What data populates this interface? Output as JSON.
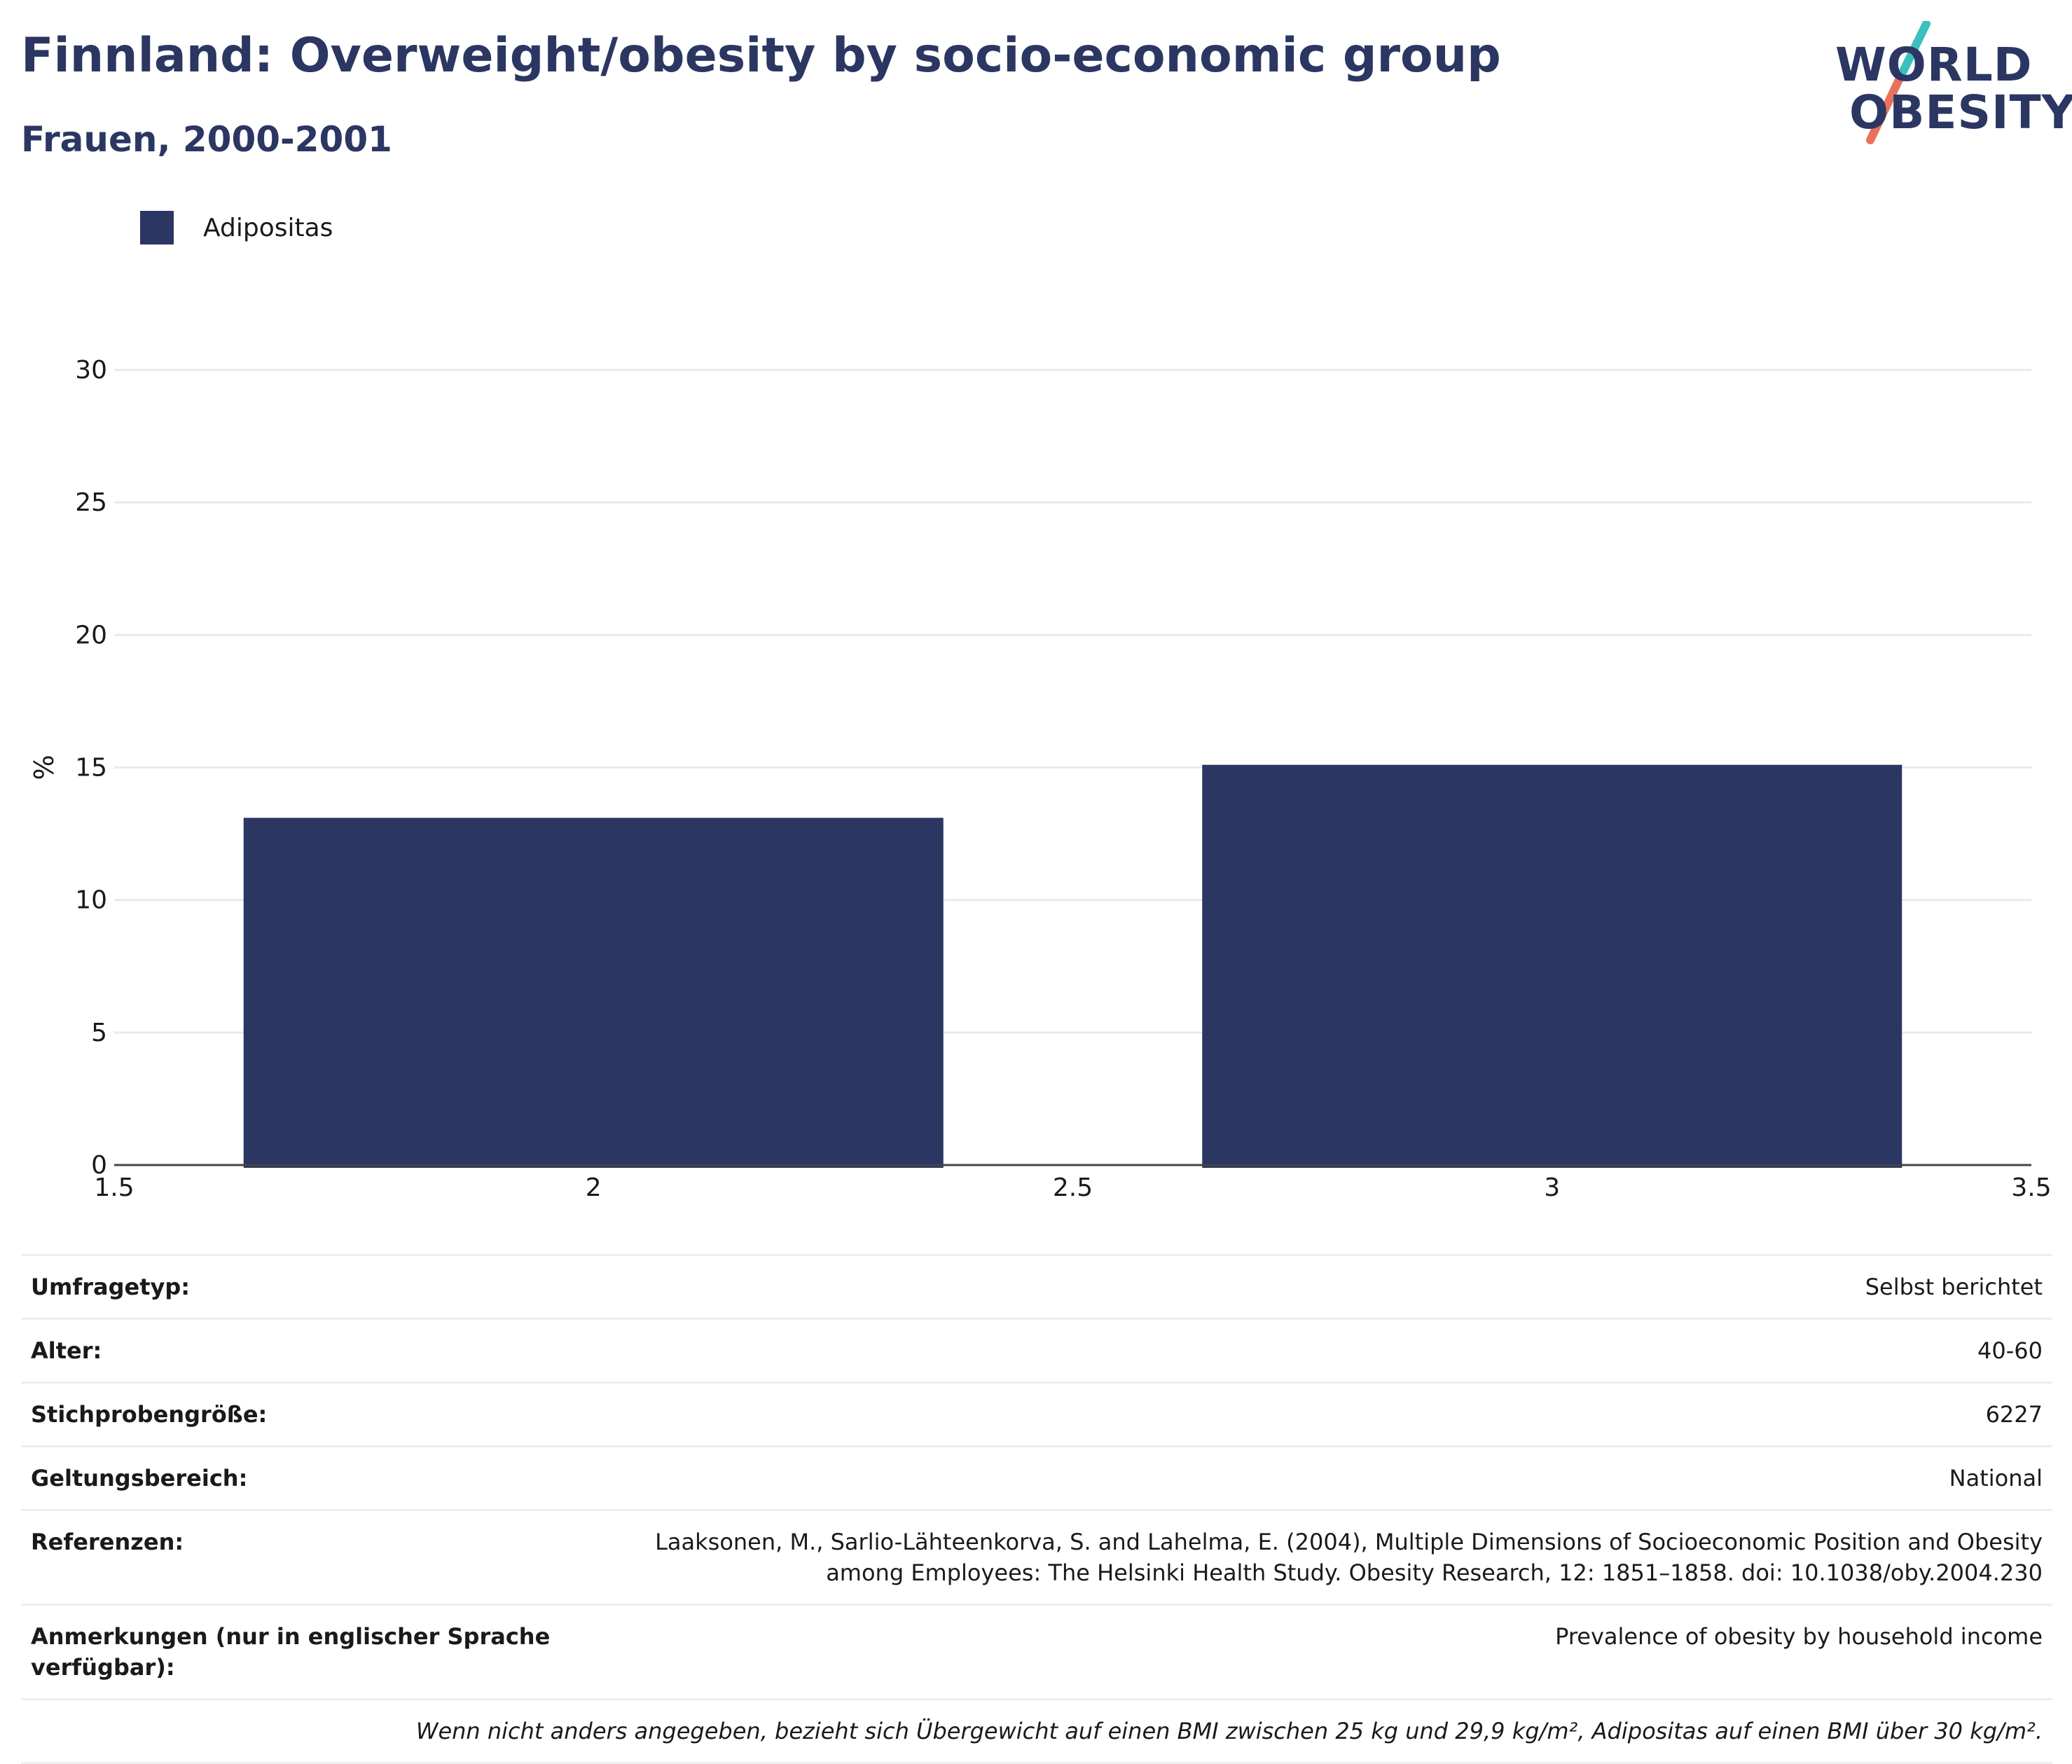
{
  "header": {
    "title": "Finnland: Overweight/obesity by socio-economic group",
    "subtitle": "Frauen, 2000-2001"
  },
  "logo": {
    "line1": "WORLD",
    "line2": "OBESITY"
  },
  "colors": {
    "bar": "#2b3762",
    "brand": "#2b3762",
    "accent_teal": "#3bbfbf",
    "accent_coral": "#e8735a"
  },
  "chart_data": {
    "type": "bar",
    "series": [
      {
        "name": "Adipositas",
        "x": [
          2,
          3
        ],
        "values": [
          13.1,
          15.1
        ]
      }
    ],
    "bar_width": 0.73,
    "xlim": [
      1.5,
      3.5
    ],
    "x_ticks": [
      "1.5",
      "2",
      "2.5",
      "3",
      "3.5"
    ],
    "ylim": [
      0,
      30
    ],
    "y_ticks": [
      "0",
      "5",
      "10",
      "15",
      "20",
      "25",
      "30"
    ],
    "ylabel": "%",
    "xlabel": "",
    "grid": true,
    "legend_position": "top-left"
  },
  "info": {
    "rows": [
      {
        "key": "Umfragetyp:",
        "value": "Selbst berichtet"
      },
      {
        "key": "Alter:",
        "value": "40-60"
      },
      {
        "key": "Stichprobengröße:",
        "value": "6227"
      },
      {
        "key": "Geltungsbereich:",
        "value": "National"
      },
      {
        "key": "Referenzen:",
        "value": "Laaksonen, M., Sarlio-Lähteenkorva, S. and Lahelma, E. (2004), Multiple Dimensions of Socioeconomic Position and Obesity among Employees: The Helsinki Health Study. Obesity Research, 12: 1851–1858. doi: 10.1038/oby.2004.230"
      },
      {
        "key": "Anmerkungen (nur in englischer Sprache verfügbar):",
        "value": "Prevalence of obesity by household income"
      }
    ],
    "footnote": "Wenn nicht anders angegeben, bezieht sich Übergewicht auf einen BMI zwischen 25 kg und 29,9 kg/m², Adipositas auf einen BMI über 30 kg/m²."
  }
}
